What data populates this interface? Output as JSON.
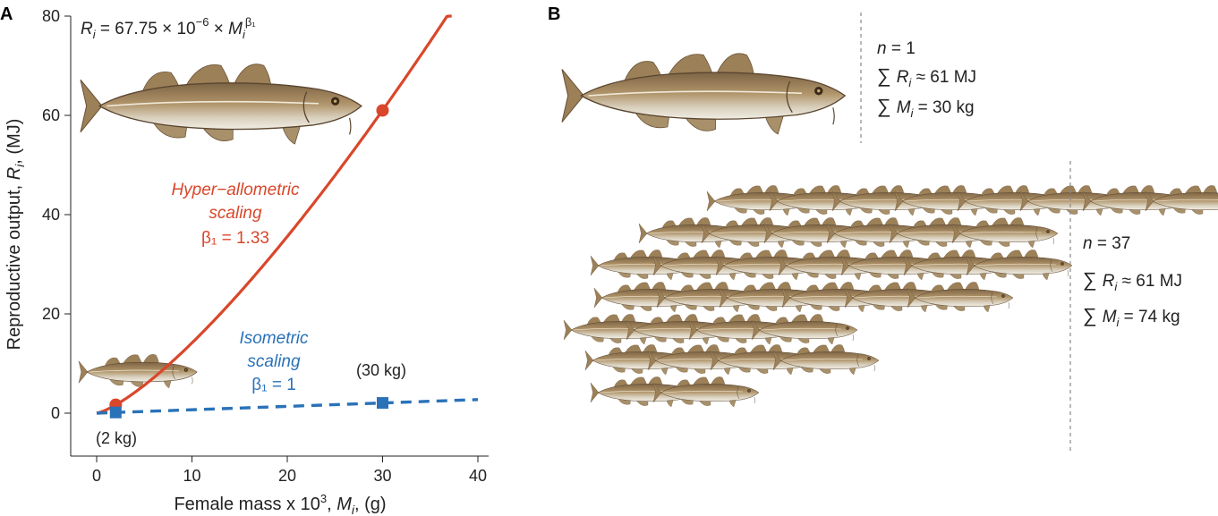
{
  "panel_a_label": "A",
  "panel_b_label": "B",
  "chart_data": {
    "type": "line",
    "formula": {
      "lhs": "R",
      "sub": "i",
      "eq": " = 67.75 × 10",
      "exp": "−6",
      "times": " × ",
      "m": "M",
      "msub": "i",
      "beta": "β₁"
    },
    "xlabel": {
      "text": "Female mass x 10",
      "sup": "3",
      "rest": ", ",
      "var": "M",
      "sub": "i",
      "unit": ", (g)"
    },
    "ylabel": {
      "text": "Reproductive output, ",
      "var": "R",
      "sub": "i",
      "unit": ", (MJ)"
    },
    "xlim": [
      0,
      40
    ],
    "ylim": [
      0,
      80
    ],
    "xticks": [
      "0",
      "10",
      "20",
      "30",
      "40"
    ],
    "yticks": [
      "0",
      "20",
      "40",
      "60",
      "80"
    ],
    "series": [
      {
        "name": "Hyper–allometric scaling",
        "label_lines": [
          "Hyper−allometric",
          "scaling",
          "β₁ = 1.33"
        ],
        "color": "#d9472b",
        "style": "solid",
        "coefficient": 6.775e-05,
        "exponent": 1.33,
        "markers": [
          {
            "x": 2,
            "y": 1.7
          },
          {
            "x": 30,
            "y": 61
          }
        ]
      },
      {
        "name": "Isometric scaling",
        "label_lines": [
          "Isometric",
          "scaling",
          "β₁ = 1"
        ],
        "color": "#2a72b8",
        "style": "dashed",
        "slope": 0.0685,
        "markers": [
          {
            "x": 2,
            "y": 0.14
          },
          {
            "x": 30,
            "y": 2.06
          }
        ]
      }
    ],
    "annotations": [
      "(30 kg)",
      "(2 kg)"
    ]
  },
  "panel_b": {
    "group1": {
      "n": "n",
      "n_val": " = 1",
      "R": "R",
      "R_val": " ≈ 61 MJ",
      "M": "M",
      "M_val": " = 30 kg"
    },
    "group2": {
      "n": "n",
      "n_val": " = 37",
      "R": "R",
      "R_val": " ≈ 61 MJ",
      "M": "M",
      "M_val": " = 74 kg"
    },
    "sum_symbol": "∑",
    "sub_i": "i"
  },
  "colors": {
    "fish_body": "#a58a62",
    "fish_belly": "#e7e2d6",
    "fish_fin": "#9c8058"
  }
}
